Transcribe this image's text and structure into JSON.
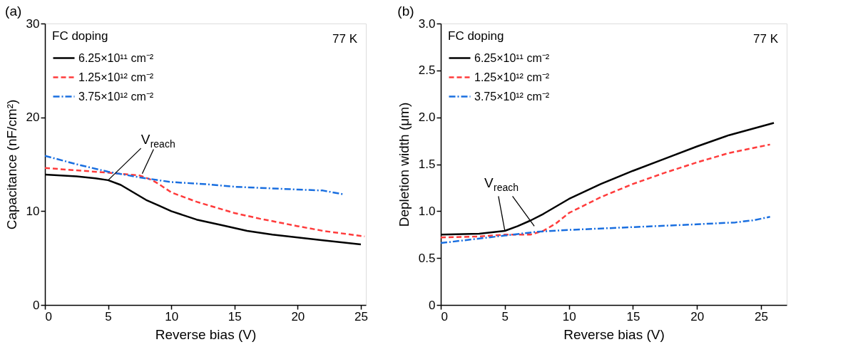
{
  "chart_data": [
    {
      "type": "line",
      "title": "(a)",
      "xlabel": "Reverse bias (V)",
      "ylabel": "Capacitance (nF/cm²)",
      "legend_title": "FC doping",
      "legend": "top left",
      "grid": false,
      "xlim": [
        0,
        25.4
      ],
      "xticks": [
        0,
        5,
        10,
        15,
        20,
        25
      ],
      "ylim": [
        0,
        30
      ],
      "yticks": [
        0,
        10,
        20,
        30
      ],
      "annotations": [
        "77 K",
        {
          "text": "V$_{reach}$",
          "x": 5.0,
          "y": 13.3
        }
      ],
      "series": [
        {
          "name": "6.25×10¹¹ cm⁻²",
          "color": "#000000",
          "line_style": "solid",
          "x": [
            0,
            2.5,
            4,
            5,
            6,
            7,
            8,
            9,
            10,
            12,
            14,
            16,
            18,
            20,
            22,
            25
          ],
          "values": [
            13.9,
            13.7,
            13.5,
            13.3,
            12.8,
            12.0,
            11.2,
            10.6,
            10.0,
            9.1,
            8.5,
            7.9,
            7.5,
            7.2,
            6.9,
            6.45
          ]
        },
        {
          "name": "1.25×10¹² cm⁻²",
          "color": "#ff3b3b",
          "line_style": "dashed",
          "x": [
            0,
            2,
            5,
            7.5,
            8.5,
            9,
            10,
            11,
            12,
            13.5,
            15,
            17,
            20,
            22,
            25.3
          ],
          "values": [
            14.6,
            14.4,
            14.1,
            13.8,
            13.3,
            12.9,
            12.0,
            11.5,
            11.0,
            10.4,
            9.8,
            9.2,
            8.4,
            7.9,
            7.3
          ]
        },
        {
          "name": "3.75×10¹² cm⁻²",
          "color": "#1a6fe0",
          "line_style": "dashdot",
          "x": [
            0,
            2.5,
            5,
            7.5,
            10,
            12.5,
            15,
            17.5,
            20,
            22,
            23.6
          ],
          "values": [
            15.9,
            15.0,
            14.2,
            13.6,
            13.1,
            12.9,
            12.6,
            12.45,
            12.3,
            12.2,
            11.8
          ]
        }
      ]
    },
    {
      "type": "line",
      "title": "(b)",
      "xlabel": "Reverse bias (V)",
      "ylabel": "Depletion width (μm)",
      "legend_title": "FC doping",
      "legend": "top left",
      "grid": false,
      "xlim": [
        0,
        27
      ],
      "xticks": [
        0,
        5,
        10,
        15,
        20,
        25
      ],
      "ylim": [
        0,
        3
      ],
      "yticks": [
        0,
        0.5,
        {
          "value": 1,
          "label": "1.0"
        },
        1.5,
        {
          "value": 2,
          "label": "2.0"
        },
        2.5,
        {
          "value": 3,
          "label": "3.0"
        }
      ],
      "annotations": [
        "77 K",
        {
          "text": "V$_{reach}$",
          "x": 5,
          "y": 0.79
        }
      ],
      "series": [
        {
          "name": "6.25×10¹¹ cm⁻²",
          "color": "#000000",
          "line_style": "solid",
          "x": [
            0,
            3,
            5,
            6,
            7,
            8,
            10,
            12.5,
            15,
            17.5,
            20,
            22.5,
            26
          ],
          "values": [
            0.75,
            0.76,
            0.79,
            0.84,
            0.9,
            0.97,
            1.13,
            1.29,
            1.43,
            1.56,
            1.69,
            1.81,
            1.94
          ]
        },
        {
          "name": "1.25×10¹² cm⁻²",
          "color": "#ff3b3b",
          "line_style": "dashed",
          "x": [
            0,
            3,
            5,
            7,
            8,
            9,
            10,
            12.5,
            15,
            17.5,
            20,
            22.5,
            25.7
          ],
          "values": [
            0.72,
            0.73,
            0.75,
            0.75,
            0.79,
            0.87,
            0.98,
            1.15,
            1.29,
            1.41,
            1.52,
            1.62,
            1.71
          ]
        },
        {
          "name": "3.75×10¹² cm⁻²",
          "color": "#1a6fe0",
          "line_style": "dashdot",
          "x": [
            0,
            5,
            7.5,
            10,
            15,
            20,
            23,
            24.5,
            25.7
          ],
          "values": [
            0.66,
            0.74,
            0.78,
            0.8,
            0.83,
            0.86,
            0.88,
            0.905,
            0.94
          ]
        }
      ]
    }
  ]
}
